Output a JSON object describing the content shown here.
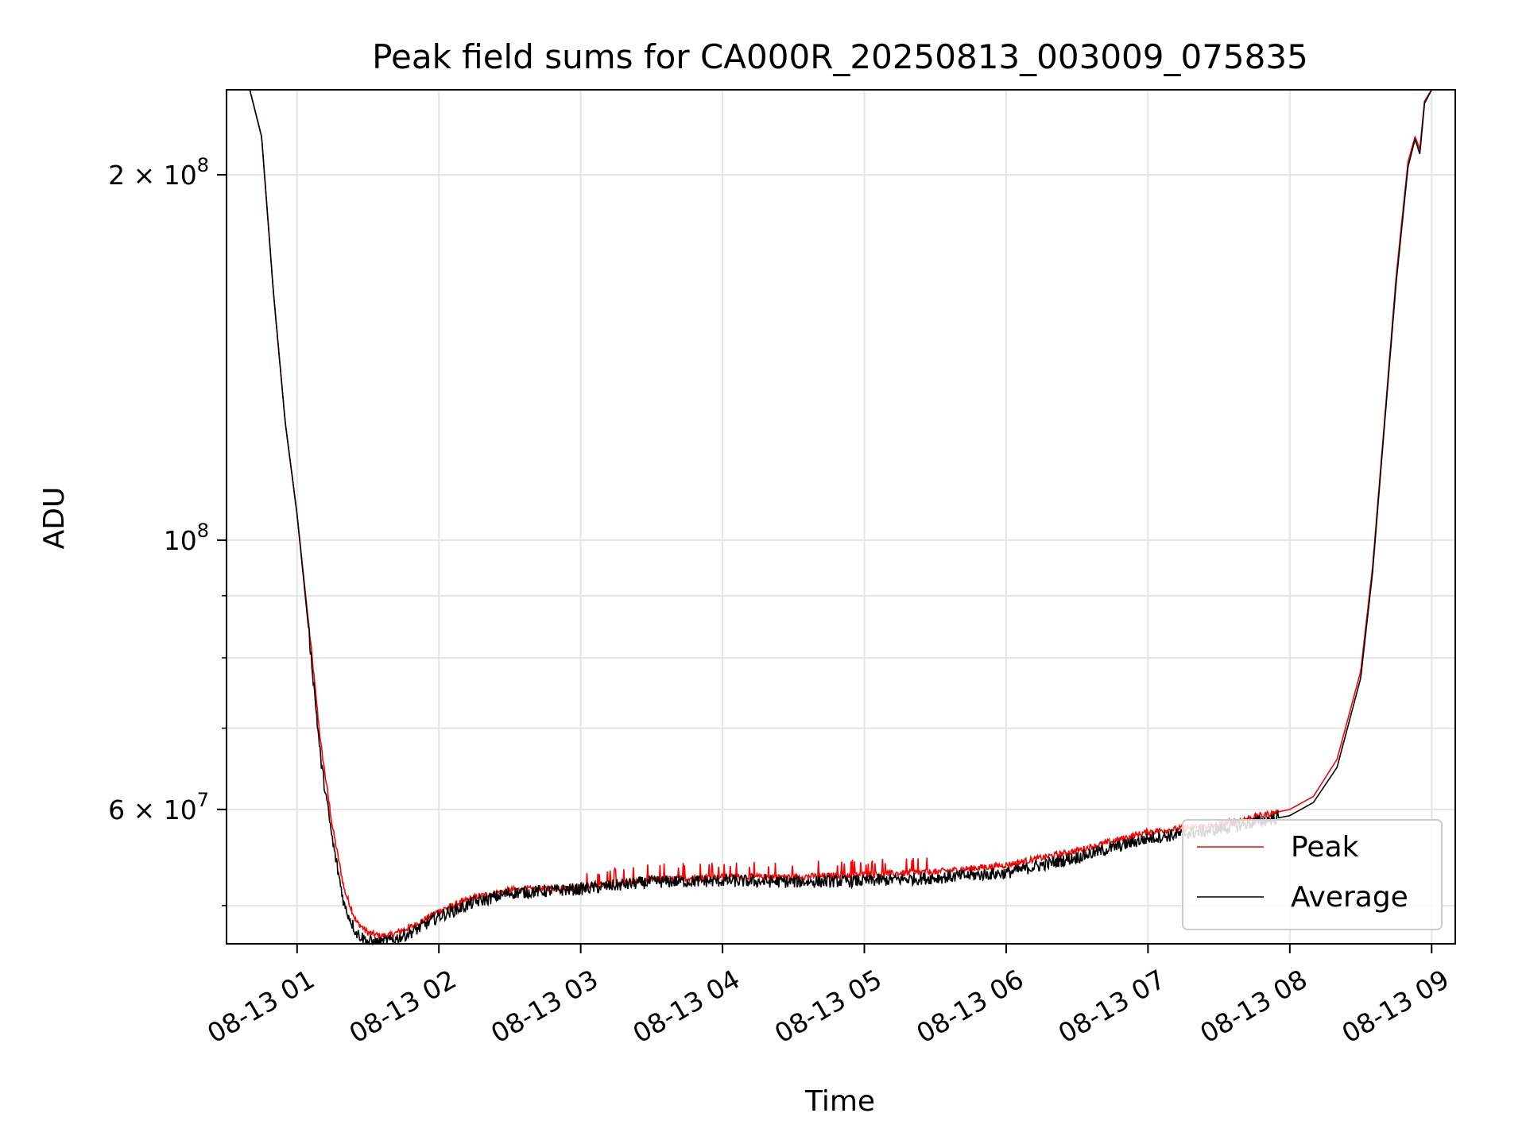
{
  "chart_data": {
    "type": "line",
    "title": "Peak field sums for CA000R_20250813_003009_075835",
    "xlabel": "Time",
    "ylabel": "ADU",
    "yscale": "log",
    "xlim": [
      "08-13 00:30:09",
      "08-13 09:10:00"
    ],
    "ylim": [
      46500000,
      235000000
    ],
    "x_ticks": [
      "08-13 01",
      "08-13 02",
      "08-13 03",
      "08-13 04",
      "08-13 05",
      "08-13 06",
      "08-13 07",
      "08-13 08",
      "08-13 09"
    ],
    "y_ticks": [
      {
        "value": 200000000,
        "label": "2 × 10^8"
      },
      {
        "value": 100000000,
        "label": "10^8"
      },
      {
        "value": 60000000,
        "label": "6 × 10^7"
      }
    ],
    "y_minor_gridlines": [
      50000000,
      70000000,
      80000000,
      90000000
    ],
    "grid": true,
    "legend_position": "bottom-right",
    "series": [
      {
        "name": "Peak",
        "color": "#ff0000",
        "points": [
          [
            "08-13 00:30",
            235000000
          ],
          [
            "08-13 00:40",
            235000000
          ],
          [
            "08-13 00:45",
            215000000
          ],
          [
            "08-13 00:50",
            160000000
          ],
          [
            "08-13 00:55",
            125000000
          ],
          [
            "08-13 01:00",
            105000000
          ],
          [
            "08-13 01:05",
            85000000
          ],
          [
            "08-13 01:10",
            68000000
          ],
          [
            "08-13 01:15",
            58000000
          ],
          [
            "08-13 01:20",
            51500000
          ],
          [
            "08-13 01:25",
            48500000
          ],
          [
            "08-13 01:30",
            47500000
          ],
          [
            "08-13 01:35",
            47200000
          ],
          [
            "08-13 01:40",
            47300000
          ],
          [
            "08-13 01:50",
            48200000
          ],
          [
            "08-13 02:00",
            49500000
          ],
          [
            "08-13 02:15",
            50800000
          ],
          [
            "08-13 02:30",
            51500000
          ],
          [
            "08-13 03:00",
            51800000
          ],
          [
            "08-13 03:30",
            52500000
          ],
          [
            "08-13 04:00",
            52800000
          ],
          [
            "08-13 04:30",
            52800000
          ],
          [
            "08-13 05:00",
            53000000
          ],
          [
            "08-13 05:30",
            53300000
          ],
          [
            "08-13 06:00",
            54000000
          ],
          [
            "08-13 06:30",
            55500000
          ],
          [
            "08-13 07:00",
            57500000
          ],
          [
            "08-13 07:30",
            58300000
          ],
          [
            "08-13 08:00",
            60000000
          ],
          [
            "08-13 08:10",
            61500000
          ],
          [
            "08-13 08:20",
            66000000
          ],
          [
            "08-13 08:30",
            78000000
          ],
          [
            "08-13 08:35",
            95000000
          ],
          [
            "08-13 08:40",
            125000000
          ],
          [
            "08-13 08:45",
            165000000
          ],
          [
            "08-13 08:50",
            205000000
          ],
          [
            "08-13 08:53",
            215000000
          ],
          [
            "08-13 08:55",
            210000000
          ],
          [
            "08-13 08:57",
            230000000
          ],
          [
            "08-13 09:00",
            235000000
          ],
          [
            "08-13 09:10",
            235000000
          ]
        ]
      },
      {
        "name": "Average",
        "color": "#000000",
        "points": [
          [
            "08-13 00:30",
            235000000
          ],
          [
            "08-13 00:40",
            235000000
          ],
          [
            "08-13 00:45",
            215000000
          ],
          [
            "08-13 00:50",
            160000000
          ],
          [
            "08-13 00:55",
            125000000
          ],
          [
            "08-13 01:00",
            105000000
          ],
          [
            "08-13 01:05",
            84000000
          ],
          [
            "08-13 01:10",
            66000000
          ],
          [
            "08-13 01:15",
            56500000
          ],
          [
            "08-13 01:20",
            50000000
          ],
          [
            "08-13 01:25",
            47500000
          ],
          [
            "08-13 01:30",
            46700000
          ],
          [
            "08-13 01:35",
            46600000
          ],
          [
            "08-13 01:40",
            46800000
          ],
          [
            "08-13 01:50",
            47700000
          ],
          [
            "08-13 02:00",
            49000000
          ],
          [
            "08-13 02:15",
            50300000
          ],
          [
            "08-13 02:30",
            51200000
          ],
          [
            "08-13 03:00",
            51600000
          ],
          [
            "08-13 03:30",
            52300000
          ],
          [
            "08-13 04:00",
            52400000
          ],
          [
            "08-13 04:30",
            52300000
          ],
          [
            "08-13 05:00",
            52400000
          ],
          [
            "08-13 05:30",
            52700000
          ],
          [
            "08-13 06:00",
            53200000
          ],
          [
            "08-13 06:30",
            54800000
          ],
          [
            "08-13 07:00",
            56800000
          ],
          [
            "08-13 07:30",
            57800000
          ],
          [
            "08-13 08:00",
            59300000
          ],
          [
            "08-13 08:10",
            60800000
          ],
          [
            "08-13 08:20",
            65000000
          ],
          [
            "08-13 08:30",
            77000000
          ],
          [
            "08-13 08:35",
            94000000
          ],
          [
            "08-13 08:40",
            124000000
          ],
          [
            "08-13 08:45",
            163000000
          ],
          [
            "08-13 08:50",
            203000000
          ],
          [
            "08-13 08:53",
            214000000
          ],
          [
            "08-13 08:55",
            208000000
          ],
          [
            "08-13 08:57",
            229000000
          ],
          [
            "08-13 09:00",
            235000000
          ],
          [
            "08-13 09:10",
            235000000
          ]
        ]
      }
    ]
  }
}
